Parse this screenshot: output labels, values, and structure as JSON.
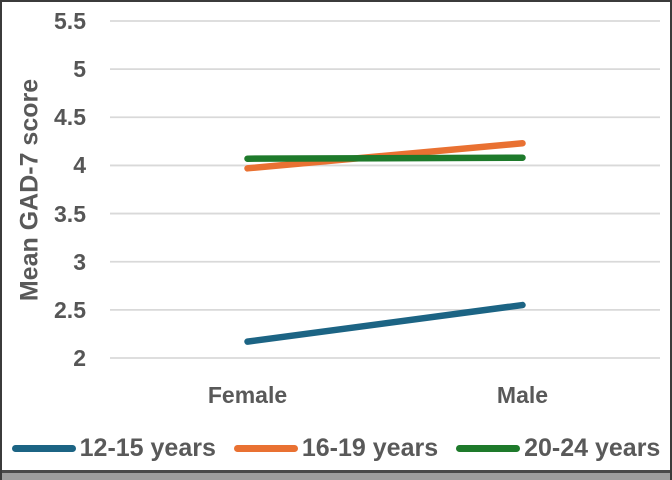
{
  "figure": {
    "border_color": "#3b3b3b",
    "bottom_strip_color": "#9e9e9e",
    "background": "#ffffff",
    "text_color": "#595959",
    "gridline_color": "#d9d9d9"
  },
  "chart_data": {
    "type": "line",
    "title": "",
    "categories": [
      "Female",
      "Male"
    ],
    "series": [
      {
        "name": "12-15 years",
        "values": [
          2.17,
          2.55
        ],
        "color": "#1c6484"
      },
      {
        "name": "16-19 years",
        "values": [
          3.97,
          4.23
        ],
        "color": "#e97132"
      },
      {
        "name": "20-24 years",
        "values": [
          4.07,
          4.08
        ],
        "color": "#1e7a2b"
      }
    ],
    "ylabel": "Mean GAD-7 score",
    "xlabel": "",
    "ylim": [
      2,
      5.5
    ],
    "ytick_step": 0.5,
    "yticks": [
      "2",
      "2.5",
      "3",
      "3.5",
      "4",
      "4.5",
      "5",
      "5.5"
    ],
    "grid": "horizontal-only",
    "legend_position": "bottom",
    "line_width": 6.5
  }
}
